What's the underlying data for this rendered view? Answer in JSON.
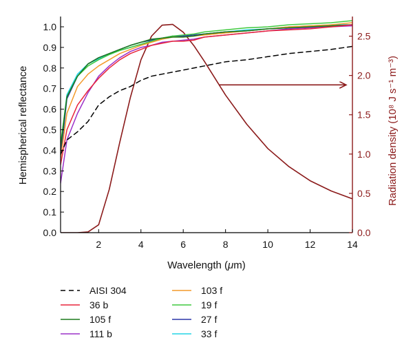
{
  "chart_data": {
    "type": "line",
    "xlabel_text": "Wavelength (",
    "xlabel_mu": "μ",
    "xlabel_unit": "m)",
    "ylabel_left": "Hemispherical reflectance",
    "ylabel_right": "Radiation density (10⁸ J s⁻¹ m⁻³)",
    "xlim": [
      0.2,
      14
    ],
    "ylim_left": [
      0.0,
      1.05
    ],
    "ylim_right": [
      0.0,
      2.75
    ],
    "x_ticks": [
      2,
      4,
      6,
      8,
      10,
      12,
      14
    ],
    "x_tick_labels": [
      "2",
      "4",
      "6",
      "8",
      "10",
      "12",
      "14"
    ],
    "y_ticks_left": [
      0.0,
      0.1,
      0.2,
      0.3,
      0.4,
      0.5,
      0.6,
      0.7,
      0.8,
      0.9,
      1.0
    ],
    "y_tick_labels_left": [
      "0.0",
      "0.1",
      "0.2",
      "0.3",
      "0.4",
      "0.5",
      "0.6",
      "0.7",
      "0.8",
      "0.9",
      "1.0"
    ],
    "y_ticks_right": [
      0.0,
      0.5,
      1.0,
      1.5,
      2.0,
      2.5
    ],
    "y_tick_labels_right": [
      "0.0",
      "0.5",
      "1.0",
      "1.5",
      "2.0",
      "2.5"
    ],
    "grid": false,
    "legend_position": "bottom",
    "right_axis_color": "#8b1a1a",
    "series": [
      {
        "name": "AISI 304",
        "color": "#000000",
        "dash": true,
        "axis": "left",
        "x": [
          0.2,
          0.5,
          1.0,
          1.5,
          2.0,
          2.5,
          3.0,
          3.5,
          4.0,
          4.5,
          5.0,
          6.0,
          7.0,
          8.0,
          9.0,
          10.0,
          11.0,
          12.0,
          13.0,
          14.0
        ],
        "y": [
          0.38,
          0.45,
          0.49,
          0.54,
          0.62,
          0.66,
          0.69,
          0.71,
          0.74,
          0.76,
          0.77,
          0.79,
          0.81,
          0.83,
          0.84,
          0.855,
          0.87,
          0.88,
          0.89,
          0.905
        ]
      },
      {
        "name": "36 b",
        "color": "#e8243a",
        "axis": "left",
        "x": [
          0.2,
          0.5,
          1.0,
          1.5,
          2.0,
          2.5,
          3.0,
          3.5,
          4.0,
          4.5,
          5.0,
          5.5,
          6.0,
          6.5,
          7.0,
          8.0,
          9.0,
          10.0,
          11.0,
          12.0,
          13.0,
          14.0
        ],
        "y": [
          0.33,
          0.5,
          0.62,
          0.69,
          0.75,
          0.8,
          0.84,
          0.87,
          0.89,
          0.91,
          0.92,
          0.93,
          0.93,
          0.935,
          0.95,
          0.96,
          0.97,
          0.98,
          0.985,
          0.99,
          1.0,
          1.01
        ]
      },
      {
        "name": "105 f",
        "color": "#1b7a1b",
        "axis": "left",
        "x": [
          0.2,
          0.5,
          1.0,
          1.5,
          2.0,
          2.5,
          3.0,
          3.5,
          4.0,
          4.5,
          5.0,
          5.5,
          6.0,
          6.5,
          7.0,
          8.0,
          9.0,
          10.0,
          11.0,
          12.0,
          13.0,
          14.0
        ],
        "y": [
          0.41,
          0.66,
          0.76,
          0.82,
          0.85,
          0.87,
          0.89,
          0.91,
          0.925,
          0.94,
          0.945,
          0.95,
          0.95,
          0.955,
          0.965,
          0.975,
          0.98,
          0.99,
          0.995,
          1.0,
          1.005,
          1.01
        ]
      },
      {
        "name": "111 b",
        "color": "#9b30c8",
        "axis": "left",
        "x": [
          0.2,
          0.5,
          1.0,
          1.5,
          2.0,
          2.5,
          3.0,
          3.5,
          4.0,
          4.5,
          5.0,
          5.5,
          6.0,
          6.5,
          7.0,
          8.0,
          9.0,
          10.0,
          11.0,
          12.0,
          13.0,
          14.0
        ],
        "y": [
          0.24,
          0.45,
          0.58,
          0.68,
          0.76,
          0.81,
          0.85,
          0.88,
          0.9,
          0.91,
          0.925,
          0.93,
          0.935,
          0.94,
          0.95,
          0.96,
          0.97,
          0.98,
          0.99,
          0.995,
          1.0,
          1.005
        ]
      },
      {
        "name": "103 f",
        "color": "#f39a2a",
        "axis": "left",
        "x": [
          0.2,
          0.5,
          1.0,
          1.5,
          2.0,
          2.5,
          3.0,
          3.5,
          4.0,
          4.5,
          5.0,
          5.5,
          6.0,
          6.5,
          7.0,
          8.0,
          9.0,
          10.0,
          11.0,
          12.0,
          13.0,
          14.0
        ],
        "y": [
          0.36,
          0.58,
          0.71,
          0.77,
          0.81,
          0.84,
          0.87,
          0.89,
          0.91,
          0.925,
          0.94,
          0.95,
          0.95,
          0.955,
          0.96,
          0.97,
          0.98,
          0.99,
          1.0,
          1.005,
          1.01,
          1.02
        ]
      },
      {
        "name": "19 f",
        "color": "#3ec93e",
        "axis": "left",
        "x": [
          0.2,
          0.5,
          1.0,
          1.5,
          2.0,
          2.5,
          3.0,
          3.5,
          4.0,
          4.5,
          5.0,
          5.5,
          6.0,
          6.5,
          7.0,
          8.0,
          9.0,
          10.0,
          11.0,
          12.0,
          13.0,
          14.0
        ],
        "y": [
          0.43,
          0.66,
          0.76,
          0.81,
          0.84,
          0.865,
          0.885,
          0.9,
          0.915,
          0.93,
          0.945,
          0.955,
          0.96,
          0.965,
          0.975,
          0.985,
          0.995,
          1.0,
          1.01,
          1.015,
          1.02,
          1.03
        ]
      },
      {
        "name": "27 f",
        "color": "#2b35a8",
        "axis": "left",
        "x": [
          0.2,
          0.5,
          1.0,
          1.5,
          2.0,
          2.5,
          3.0,
          3.5,
          4.0,
          4.5,
          5.0,
          5.5,
          6.0,
          6.5,
          7.0,
          8.0,
          9.0,
          10.0,
          11.0,
          12.0,
          13.0,
          14.0
        ],
        "y": [
          0.37,
          0.65,
          0.76,
          0.82,
          0.85,
          0.87,
          0.89,
          0.91,
          0.925,
          0.935,
          0.945,
          0.955,
          0.955,
          0.96,
          0.965,
          0.975,
          0.98,
          0.99,
          0.995,
          1.0,
          1.005,
          1.01
        ]
      },
      {
        "name": "33 f",
        "color": "#22d4e6",
        "axis": "left",
        "x": [
          0.2,
          0.5,
          1.0,
          1.5,
          2.0,
          2.5,
          3.0,
          3.5,
          4.0,
          4.5,
          5.0,
          5.5,
          6.0,
          6.5,
          7.0,
          8.0,
          9.0,
          10.0,
          11.0,
          12.0,
          13.0,
          14.0
        ],
        "y": [
          0.42,
          0.67,
          0.77,
          0.82,
          0.845,
          0.865,
          0.885,
          0.9,
          0.915,
          0.93,
          0.94,
          0.95,
          0.955,
          0.96,
          0.965,
          0.975,
          0.985,
          0.99,
          1.0,
          1.005,
          1.01,
          1.01
        ]
      },
      {
        "name": "",
        "color": "#8b1a1a",
        "axis": "right",
        "x": [
          0.2,
          1.0,
          1.5,
          2.0,
          2.5,
          3.0,
          3.5,
          4.0,
          4.5,
          5.0,
          5.5,
          6.0,
          6.5,
          7.0,
          8.0,
          9.0,
          10.0,
          11.0,
          12.0,
          13.0,
          14.0
        ],
        "y": [
          0.0,
          0.0,
          0.01,
          0.1,
          0.55,
          1.15,
          1.72,
          2.2,
          2.5,
          2.64,
          2.65,
          2.55,
          2.38,
          2.18,
          1.75,
          1.38,
          1.07,
          0.84,
          0.66,
          0.53,
          0.43
        ]
      }
    ],
    "annotation_arrow": {
      "from": [
        7.7,
        1.88
      ],
      "to": [
        13.9,
        1.88
      ],
      "axis": "right",
      "color": "#8b1a1a"
    }
  }
}
